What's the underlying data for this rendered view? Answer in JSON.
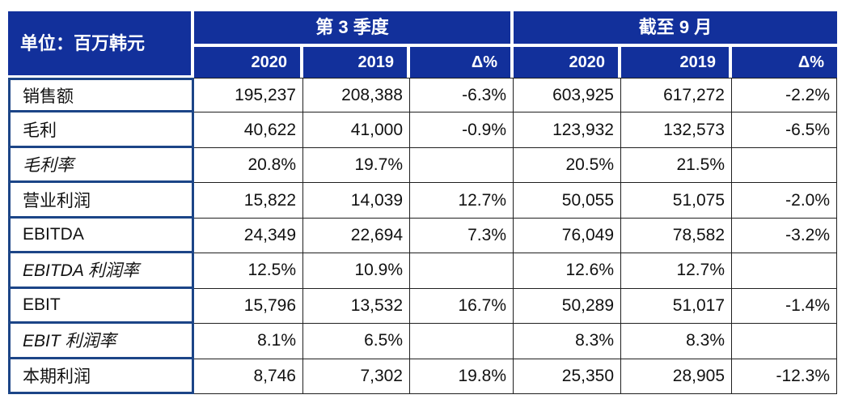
{
  "unit_label": "单位：百万韩元",
  "header": {
    "groups": [
      {
        "label": "第 3 季度"
      },
      {
        "label": "截至 9 月"
      }
    ],
    "subcolumns": [
      "2020",
      "2019",
      "Δ%"
    ]
  },
  "rows": [
    {
      "label": "销售额",
      "italic": false,
      "values": [
        "195,237",
        "208,388",
        "-6.3%",
        "603,925",
        "617,272",
        "-2.2%"
      ]
    },
    {
      "label": "毛利",
      "italic": false,
      "values": [
        "40,622",
        "41,000",
        "-0.9%",
        "123,932",
        "132,573",
        "-6.5%"
      ]
    },
    {
      "label": "毛利率",
      "italic": true,
      "values": [
        "20.8%",
        "19.7%",
        "",
        "20.5%",
        "21.5%",
        ""
      ]
    },
    {
      "label": "营业利润",
      "italic": false,
      "values": [
        "15,822",
        "14,039",
        "12.7%",
        "50,055",
        "51,075",
        "-2.0%"
      ]
    },
    {
      "label": "EBITDA",
      "italic": false,
      "values": [
        "24,349",
        "22,694",
        "7.3%",
        "76,049",
        "78,582",
        "-3.2%"
      ]
    },
    {
      "label": "EBITDA 利润率",
      "italic": true,
      "values": [
        "12.5%",
        "10.9%",
        "",
        "12.6%",
        "12.7%",
        ""
      ]
    },
    {
      "label": "EBIT",
      "italic": false,
      "values": [
        "15,796",
        "13,532",
        "16.7%",
        "50,289",
        "51,017",
        "-1.4%"
      ]
    },
    {
      "label": "EBIT 利润率",
      "italic": true,
      "values": [
        "8.1%",
        "6.5%",
        "",
        "8.3%",
        "8.3%",
        ""
      ]
    },
    {
      "label": "本期利润",
      "italic": false,
      "values": [
        "8,746",
        "7,302",
        "19.8%",
        "25,350",
        "28,905",
        "-12.3%"
      ]
    }
  ],
  "colors": {
    "header_background": "#12309B",
    "header_text": "#FFFFFF",
    "row_border_blue": "#1C4587",
    "cell_border": "#1F1F1F",
    "body_text": "#111111",
    "page_background": "#FFFFFF"
  },
  "chart_data": {
    "type": "table",
    "title": "单位：百万韩元",
    "column_groups": [
      "第 3 季度",
      "截至 9 月"
    ],
    "columns": [
      "",
      "第 3 季度 2020",
      "第 3 季度 2019",
      "第 3 季度 Δ%",
      "截至 9 月 2020",
      "截至 9 月 2019",
      "截至 9 月 Δ%"
    ],
    "rows": [
      [
        "销售额",
        "195,237",
        "208,388",
        "-6.3%",
        "603,925",
        "617,272",
        "-2.2%"
      ],
      [
        "毛利",
        "40,622",
        "41,000",
        "-0.9%",
        "123,932",
        "132,573",
        "-6.5%"
      ],
      [
        "毛利率",
        "20.8%",
        "19.7%",
        "",
        "20.5%",
        "21.5%",
        ""
      ],
      [
        "营业利润",
        "15,822",
        "14,039",
        "12.7%",
        "50,055",
        "51,075",
        "-2.0%"
      ],
      [
        "EBITDA",
        "24,349",
        "22,694",
        "7.3%",
        "76,049",
        "78,582",
        "-3.2%"
      ],
      [
        "EBITDA 利润率",
        "12.5%",
        "10.9%",
        "",
        "12.6%",
        "12.7%",
        ""
      ],
      [
        "EBIT",
        "15,796",
        "13,532",
        "16.7%",
        "50,289",
        "51,017",
        "-1.4%"
      ],
      [
        "EBIT 利润率",
        "8.1%",
        "6.5%",
        "",
        "8.3%",
        "8.3%",
        ""
      ],
      [
        "本期利润",
        "8,746",
        "7,302",
        "19.8%",
        "25,350",
        "28,905",
        "-12.3%"
      ]
    ]
  }
}
